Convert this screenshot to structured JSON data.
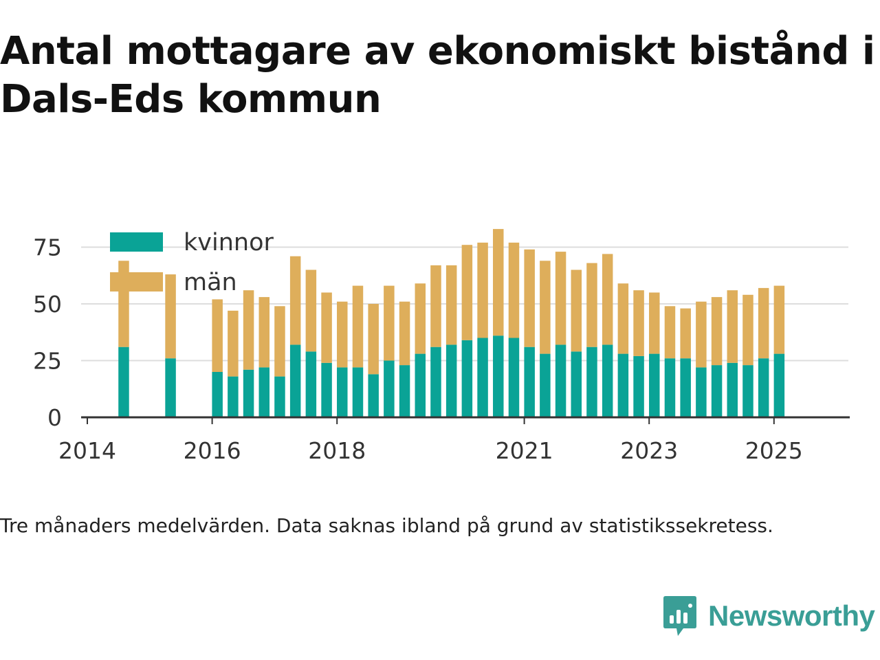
{
  "title": "Antal mottagare av ekonomiskt bistånd i Dals-Eds kommun",
  "caption": "Tre månaders medelvärden. Data saknas ibland på grund av statistikssekretess.",
  "brand": {
    "name": "Newsworthy",
    "icon": "newsworthy-logo-icon"
  },
  "colors": {
    "kvinnor": "#0aa396",
    "man": "#deae5b",
    "grid": "#dddddd",
    "axis": "#333333"
  },
  "chart_data": {
    "type": "bar",
    "stacked": true,
    "series": [
      {
        "name": "kvinnor",
        "color": "#0aa396"
      },
      {
        "name": "män",
        "color": "#deae5b"
      }
    ],
    "x_ticks": [
      "2014",
      "2016",
      "2018",
      "2021",
      "2023",
      "2025"
    ],
    "y_ticks": [
      0,
      25,
      50,
      75
    ],
    "ylim": [
      0,
      85
    ],
    "grid": true,
    "legend_position": "top-left",
    "points": [
      {
        "date": "2014-08",
        "kvinnor": 31,
        "man": 38,
        "faded": true
      },
      {
        "date": "2015-05",
        "kvinnor": 26,
        "man": 37,
        "faded": true
      },
      {
        "date": "2016-02",
        "kvinnor": 20,
        "man": 32,
        "faded": true
      },
      {
        "date": "2016-05",
        "kvinnor": 18,
        "man": 29
      },
      {
        "date": "2016-08",
        "kvinnor": 21,
        "man": 35,
        "faded": true
      },
      {
        "date": "2016-11",
        "kvinnor": 22,
        "man": 31
      },
      {
        "date": "2017-02",
        "kvinnor": 18,
        "man": 31
      },
      {
        "date": "2017-05",
        "kvinnor": 32,
        "man": 39
      },
      {
        "date": "2017-08",
        "kvinnor": 29,
        "man": 36
      },
      {
        "date": "2017-11",
        "kvinnor": 24,
        "man": 31
      },
      {
        "date": "2018-02",
        "kvinnor": 22,
        "man": 29
      },
      {
        "date": "2018-05",
        "kvinnor": 22,
        "man": 36
      },
      {
        "date": "2018-08",
        "kvinnor": 19,
        "man": 31
      },
      {
        "date": "2018-11",
        "kvinnor": 25,
        "man": 33
      },
      {
        "date": "2019-02",
        "kvinnor": 23,
        "man": 28
      },
      {
        "date": "2019-05",
        "kvinnor": 28,
        "man": 31
      },
      {
        "date": "2019-08",
        "kvinnor": 31,
        "man": 36
      },
      {
        "date": "2019-11",
        "kvinnor": 32,
        "man": 35
      },
      {
        "date": "2020-02",
        "kvinnor": 34,
        "man": 42
      },
      {
        "date": "2020-05",
        "kvinnor": 35,
        "man": 42
      },
      {
        "date": "2020-08",
        "kvinnor": 36,
        "man": 47
      },
      {
        "date": "2020-11",
        "kvinnor": 35,
        "man": 42
      },
      {
        "date": "2021-02",
        "kvinnor": 31,
        "man": 43
      },
      {
        "date": "2021-05",
        "kvinnor": 28,
        "man": 41
      },
      {
        "date": "2021-08",
        "kvinnor": 32,
        "man": 41
      },
      {
        "date": "2021-11",
        "kvinnor": 29,
        "man": 36
      },
      {
        "date": "2022-02",
        "kvinnor": 31,
        "man": 37
      },
      {
        "date": "2022-05",
        "kvinnor": 32,
        "man": 40
      },
      {
        "date": "2022-08",
        "kvinnor": 28,
        "man": 31
      },
      {
        "date": "2022-11",
        "kvinnor": 27,
        "man": 29
      },
      {
        "date": "2023-02",
        "kvinnor": 28,
        "man": 27
      },
      {
        "date": "2023-05",
        "kvinnor": 26,
        "man": 23
      },
      {
        "date": "2023-08",
        "kvinnor": 26,
        "man": 22
      },
      {
        "date": "2023-11",
        "kvinnor": 22,
        "man": 29
      },
      {
        "date": "2024-02",
        "kvinnor": 23,
        "man": 30
      },
      {
        "date": "2024-05",
        "kvinnor": 24,
        "man": 32
      },
      {
        "date": "2024-08",
        "kvinnor": 23,
        "man": 31
      },
      {
        "date": "2024-11",
        "kvinnor": 26,
        "man": 31
      },
      {
        "date": "2025-02",
        "kvinnor": 28,
        "man": 30
      }
    ]
  }
}
